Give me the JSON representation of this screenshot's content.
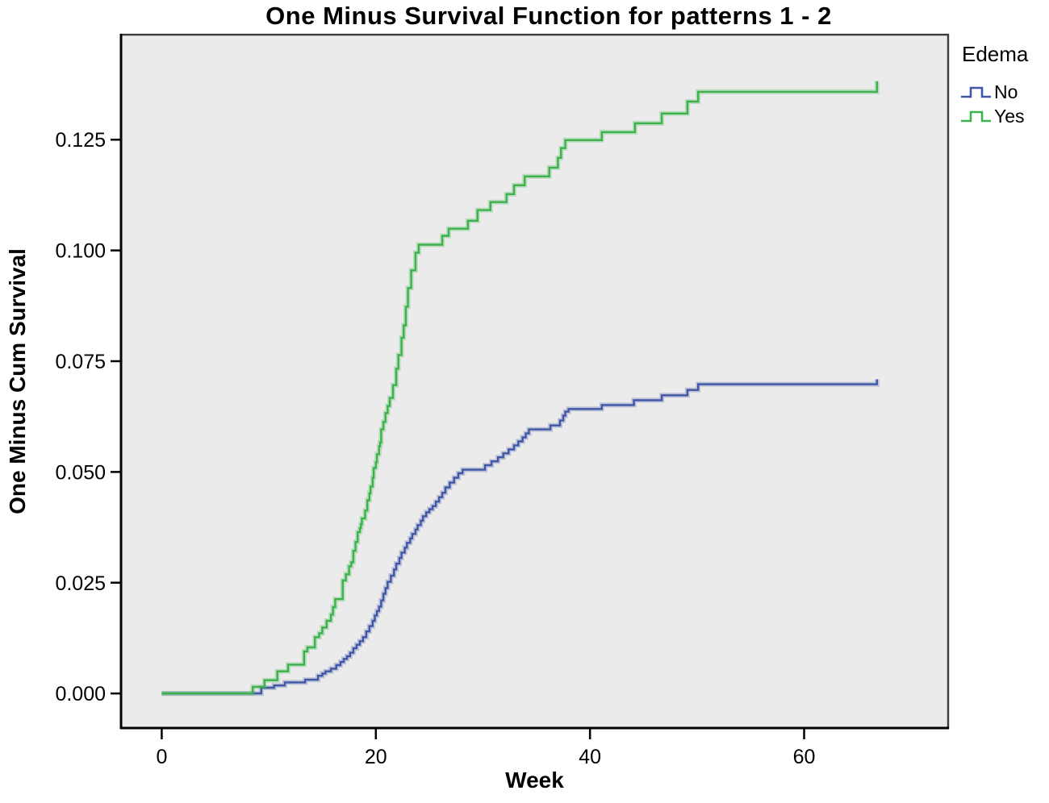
{
  "chart": {
    "title": "One Minus Survival Function for patterns 1 - 2"
  },
  "chart_data": {
    "type": "line",
    "subtype": "step-survival",
    "title": "One Minus Survival Function for patterns 1 - 2",
    "xlabel": "Week",
    "ylabel": "One Minus Cum Survival",
    "legend_title": "Edema",
    "legend_position": "right-top",
    "grid": false,
    "plot_bg": "#ebebeb",
    "frame_color": "#3d3d3d",
    "axis_color": "#000000",
    "x_axis": {
      "ticks": [
        0,
        20,
        40,
        60
      ],
      "tick_labels": [
        "0",
        "20",
        "40",
        "60"
      ],
      "range": [
        -3.8,
        73.45
      ]
    },
    "y_axis": {
      "ticks": [
        0.0,
        0.025,
        0.05,
        0.075,
        0.1,
        0.125
      ],
      "tick_labels": [
        "0.000",
        "0.025",
        "0.050",
        "0.075",
        "0.100",
        "0.125"
      ],
      "range": [
        -0.0078,
        0.1487
      ]
    },
    "series": [
      {
        "name": "No",
        "color": "#4156a6",
        "points": [
          [
            0,
            0
          ],
          [
            9.3,
            0.0013
          ],
          [
            10.5,
            0.0018
          ],
          [
            11.5,
            0.0025
          ],
          [
            13.4,
            0.0031
          ],
          [
            14.6,
            0.004
          ],
          [
            15.0,
            0.0045
          ],
          [
            15.3,
            0.005
          ],
          [
            15.8,
            0.0056
          ],
          [
            16.3,
            0.0064
          ],
          [
            16.7,
            0.0071
          ],
          [
            17.0,
            0.0078
          ],
          [
            17.3,
            0.0084
          ],
          [
            17.6,
            0.0092
          ],
          [
            17.9,
            0.0102
          ],
          [
            18.2,
            0.011
          ],
          [
            18.5,
            0.0118
          ],
          [
            18.8,
            0.0127
          ],
          [
            19.1,
            0.014
          ],
          [
            19.4,
            0.0152
          ],
          [
            19.7,
            0.0164
          ],
          [
            19.9,
            0.0176
          ],
          [
            20.1,
            0.0186
          ],
          [
            20.3,
            0.0196
          ],
          [
            20.5,
            0.021
          ],
          [
            20.7,
            0.0225
          ],
          [
            20.9,
            0.0238
          ],
          [
            21.1,
            0.0252
          ],
          [
            21.4,
            0.0266
          ],
          [
            21.7,
            0.028
          ],
          [
            21.9,
            0.0293
          ],
          [
            22.2,
            0.0306
          ],
          [
            22.4,
            0.0318
          ],
          [
            22.7,
            0.0329
          ],
          [
            22.9,
            0.034
          ],
          [
            23.2,
            0.035
          ],
          [
            23.4,
            0.036
          ],
          [
            23.7,
            0.037
          ],
          [
            23.9,
            0.038
          ],
          [
            24.2,
            0.039
          ],
          [
            24.4,
            0.04
          ],
          [
            24.7,
            0.0409
          ],
          [
            25.0,
            0.0416
          ],
          [
            25.3,
            0.0423
          ],
          [
            25.6,
            0.0433
          ],
          [
            25.9,
            0.0443
          ],
          [
            26.2,
            0.0453
          ],
          [
            26.5,
            0.0465
          ],
          [
            26.9,
            0.0476
          ],
          [
            27.3,
            0.0487
          ],
          [
            27.7,
            0.0497
          ],
          [
            28.1,
            0.0505
          ],
          [
            30.2,
            0.0515
          ],
          [
            30.8,
            0.0524
          ],
          [
            31.4,
            0.0533
          ],
          [
            31.9,
            0.0542
          ],
          [
            32.4,
            0.0551
          ],
          [
            32.9,
            0.056
          ],
          [
            33.3,
            0.0569
          ],
          [
            33.7,
            0.0578
          ],
          [
            34.0,
            0.0587
          ],
          [
            34.3,
            0.0596
          ],
          [
            36.3,
            0.0605
          ],
          [
            37.2,
            0.0616
          ],
          [
            37.5,
            0.0627
          ],
          [
            37.7,
            0.0636
          ],
          [
            38.0,
            0.0642
          ],
          [
            41.1,
            0.0651
          ],
          [
            44.1,
            0.0662
          ],
          [
            46.7,
            0.0673
          ],
          [
            49.1,
            0.0685
          ],
          [
            50.1,
            0.0698
          ],
          [
            66.8,
            0.0709
          ]
        ]
      },
      {
        "name": "Yes",
        "color": "#3cb24c",
        "points": [
          [
            0,
            0
          ],
          [
            8.5,
            0.0015
          ],
          [
            9.6,
            0.003
          ],
          [
            10.8,
            0.005
          ],
          [
            11.8,
            0.0065
          ],
          [
            13.3,
            0.0095
          ],
          [
            13.6,
            0.0104
          ],
          [
            14.3,
            0.0127
          ],
          [
            14.7,
            0.0136
          ],
          [
            15.0,
            0.0149
          ],
          [
            15.4,
            0.0164
          ],
          [
            15.8,
            0.0178
          ],
          [
            16.0,
            0.0195
          ],
          [
            16.2,
            0.0213
          ],
          [
            16.9,
            0.0255
          ],
          [
            17.2,
            0.0269
          ],
          [
            17.5,
            0.0287
          ],
          [
            17.7,
            0.0296
          ],
          [
            17.9,
            0.0322
          ],
          [
            18.1,
            0.0342
          ],
          [
            18.3,
            0.0364
          ],
          [
            18.5,
            0.0373
          ],
          [
            18.6,
            0.0382
          ],
          [
            18.7,
            0.0395
          ],
          [
            19.0,
            0.0413
          ],
          [
            19.2,
            0.0436
          ],
          [
            19.4,
            0.0452
          ],
          [
            19.5,
            0.0467
          ],
          [
            19.7,
            0.0487
          ],
          [
            19.8,
            0.0509
          ],
          [
            20.0,
            0.0522
          ],
          [
            20.1,
            0.054
          ],
          [
            20.3,
            0.0558
          ],
          [
            20.4,
            0.0567
          ],
          [
            20.5,
            0.0596
          ],
          [
            20.7,
            0.0613
          ],
          [
            20.9,
            0.0633
          ],
          [
            21.1,
            0.0649
          ],
          [
            21.3,
            0.0667
          ],
          [
            21.6,
            0.0696
          ],
          [
            21.9,
            0.0733
          ],
          [
            22.1,
            0.0764
          ],
          [
            22.4,
            0.0803
          ],
          [
            22.6,
            0.0831
          ],
          [
            22.8,
            0.0873
          ],
          [
            23.0,
            0.0915
          ],
          [
            23.3,
            0.0955
          ],
          [
            23.7,
            0.0995
          ],
          [
            24.0,
            0.1013
          ],
          [
            26.2,
            0.1033
          ],
          [
            26.8,
            0.1049
          ],
          [
            28.6,
            0.1067
          ],
          [
            29.5,
            0.1091
          ],
          [
            30.7,
            0.1109
          ],
          [
            32.2,
            0.1127
          ],
          [
            32.9,
            0.1147
          ],
          [
            33.9,
            0.1167
          ],
          [
            36.2,
            0.1187
          ],
          [
            37.0,
            0.1209
          ],
          [
            37.3,
            0.1231
          ],
          [
            37.7,
            0.1249
          ],
          [
            41.1,
            0.1267
          ],
          [
            44.2,
            0.1287
          ],
          [
            46.7,
            0.1309
          ],
          [
            49.1,
            0.1336
          ],
          [
            50.1,
            0.1358
          ],
          [
            66.8,
            0.1382
          ]
        ]
      }
    ]
  }
}
